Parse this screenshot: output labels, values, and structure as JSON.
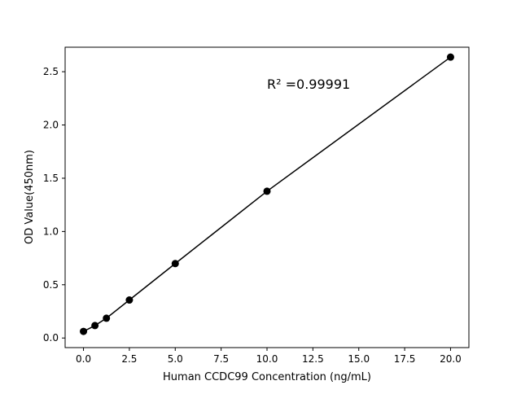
{
  "chart_data": {
    "type": "line",
    "title": "",
    "xlabel": "Human CCDC99 Concentration (ng/mL)",
    "ylabel": "OD Value(450nm)",
    "xlim": [
      -1,
      21
    ],
    "ylim": [
      -0.09,
      2.73
    ],
    "xticks": [
      "0.0",
      "2.5",
      "5.0",
      "7.5",
      "10.0",
      "12.5",
      "15.0",
      "17.5",
      "20.0"
    ],
    "yticks": [
      "0.0",
      "0.5",
      "1.0",
      "1.5",
      "2.0",
      "2.5"
    ],
    "grid": false,
    "annotation": "R² =0.99991",
    "series": [
      {
        "x": [
          0,
          0.625,
          1.25,
          2.5,
          5,
          10,
          20
        ],
        "y": [
          0.062,
          0.117,
          0.186,
          0.357,
          0.699,
          1.378,
          2.637
        ],
        "color": "#000000",
        "marker": "circle"
      }
    ]
  }
}
